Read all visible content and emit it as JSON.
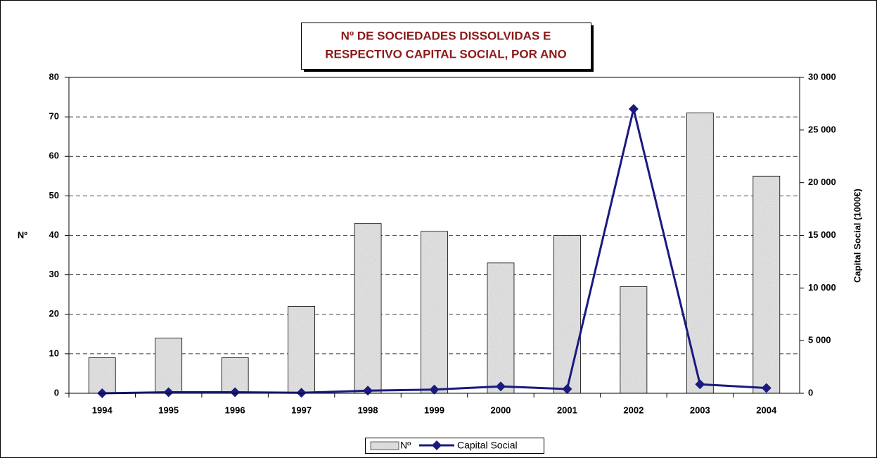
{
  "chart_data": {
    "type": "bar_line",
    "title": [
      "Nº DE SOCIEDADES DISSOLVIDAS E",
      "RESPECTIVO CAPITAL SOCIAL, POR ANO"
    ],
    "y_label": "Nº",
    "y2_label": "Capital Social (1000€)",
    "categories": [
      "1994",
      "1995",
      "1996",
      "1997",
      "1998",
      "1999",
      "2000",
      "2001",
      "2002",
      "2003",
      "2004"
    ],
    "series": [
      {
        "name": "Nº",
        "type": "bar",
        "color": "#a8a8a8",
        "values": [
          9,
          14,
          9,
          22,
          43,
          41,
          33,
          40,
          27,
          71,
          55
        ]
      },
      {
        "name": "Capital Social",
        "type": "line",
        "axis": "y2",
        "color": "#1a1a80",
        "values": [
          0,
          100,
          100,
          50,
          250,
          350,
          650,
          400,
          27000,
          850,
          500
        ]
      }
    ],
    "ylim": [
      0,
      80
    ],
    "yticks": [
      0,
      10,
      20,
      30,
      40,
      50,
      60,
      70,
      80
    ],
    "y2lim": [
      0,
      30000
    ],
    "y2ticks": [
      0,
      {
        "value": 5000,
        "label": "5 000"
      },
      {
        "value": 10000,
        "label": "10 000"
      },
      {
        "value": 15000,
        "label": "15 000"
      },
      {
        "value": 20000,
        "label": "20 000"
      },
      {
        "value": 25000,
        "label": "25 000"
      },
      {
        "value": 30000,
        "label": "30 000"
      }
    ],
    "grid": true,
    "legend": "bottom"
  }
}
